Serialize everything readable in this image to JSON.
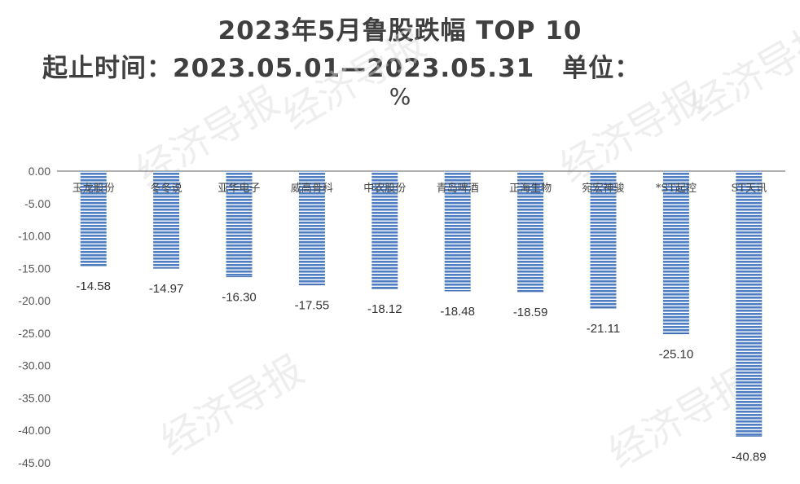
{
  "chart_data": {
    "type": "bar",
    "title": "2023年5月鲁股跌幅 TOP 10",
    "subtitle_period_label": "起止时间：",
    "subtitle_period": "2023.05.01—2023.05.31",
    "subtitle_unit_label": "单位：",
    "unit": "%",
    "categories": [
      "玉龙股份",
      "冬冬说",
      "亚华电子",
      "威高骨科",
      "中农股份",
      "青岛啤酒",
      "正海生物",
      "宛宏神骏",
      "*ST起控",
      "ST天讯"
    ],
    "values": [
      -14.58,
      -14.97,
      -16.3,
      -17.55,
      -18.12,
      -18.48,
      -18.59,
      -21.11,
      -25.1,
      -40.89
    ],
    "data_labels": [
      "-14.58",
      "-14.97",
      "-16.30",
      "-17.55",
      "-18.12",
      "-18.48",
      "-18.59",
      "-21.11",
      "-25.10",
      "-40.89"
    ],
    "ylim": [
      -45,
      0
    ],
    "yticks": [
      "0.00",
      "-5.00",
      "-10.00",
      "-15.00",
      "-20.00",
      "-25.00",
      "-30.00",
      "-35.00",
      "-40.00",
      "-45.00"
    ],
    "grid": false,
    "bar_color": "#4f7ec2",
    "bar_stripe_color": "#ffffff"
  },
  "watermark": "经济导报"
}
